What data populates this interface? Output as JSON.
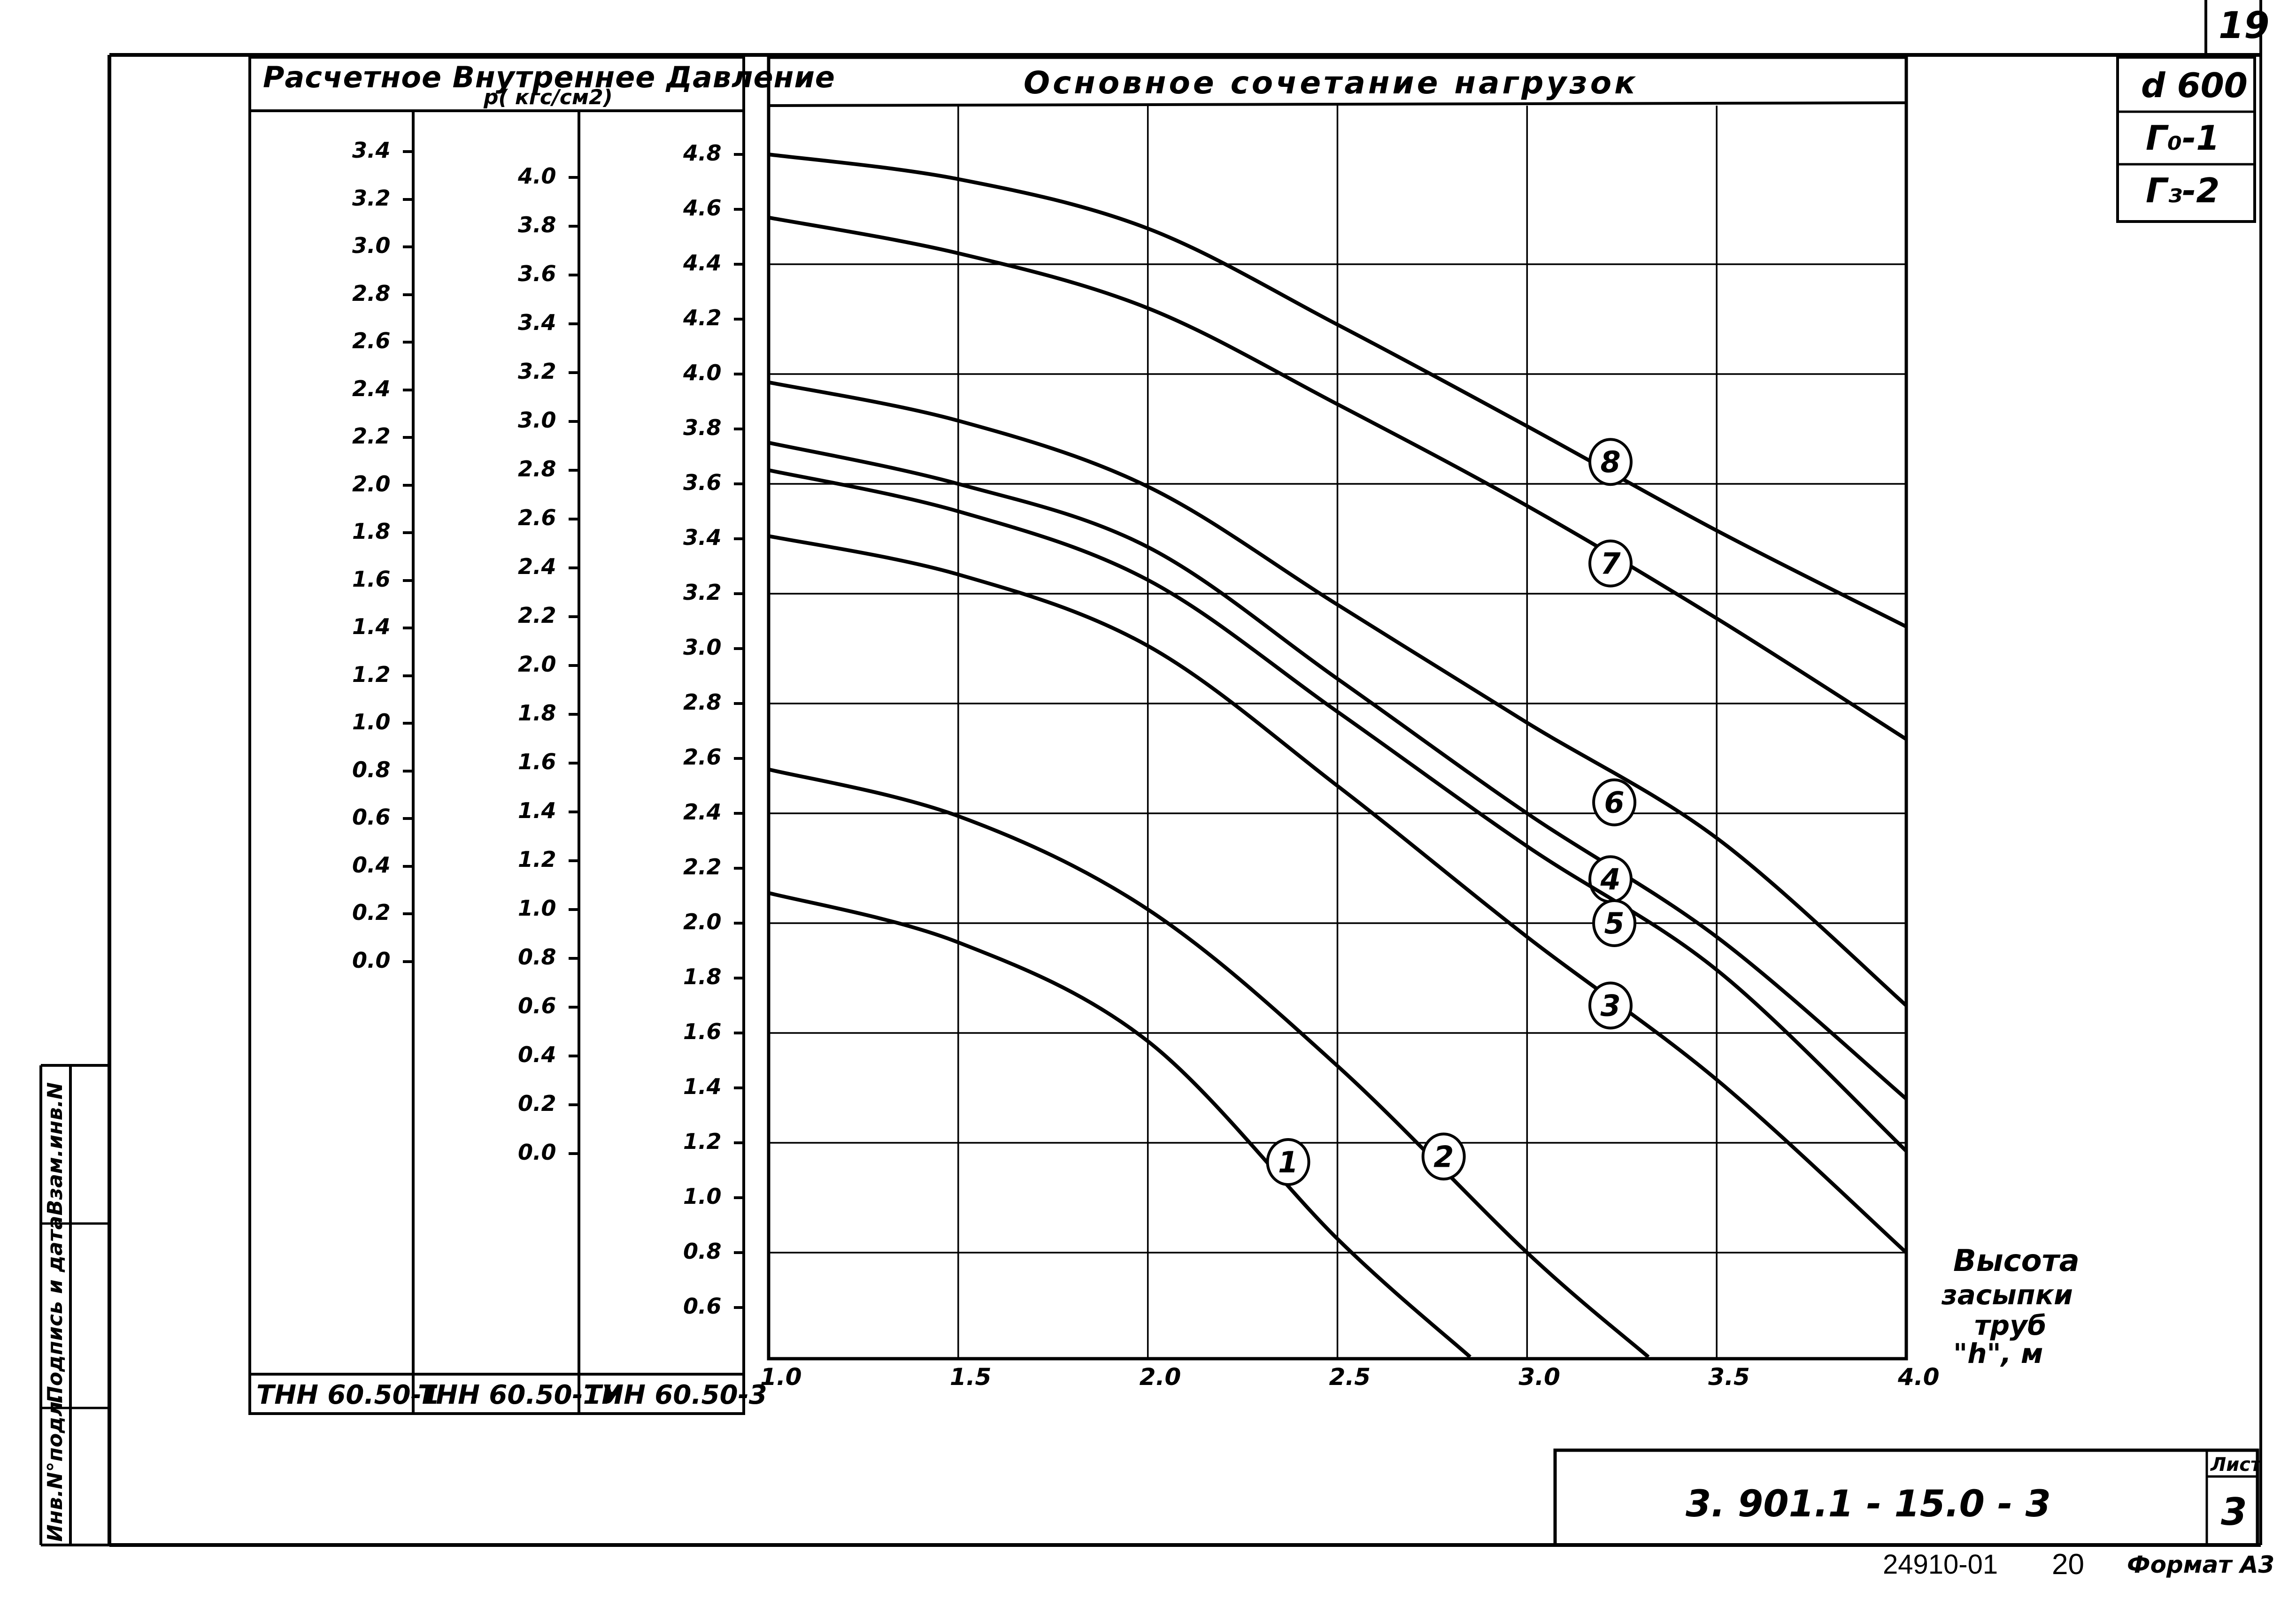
{
  "sheet": {
    "page_number_top": "19",
    "title_block": {
      "designation": "3. 901.1 - 15.0 - 3",
      "sheet_label": "Лист",
      "sheet_number": "3"
    },
    "footer": {
      "inventory": "24910-01",
      "copy_no": "20",
      "format": "Формат А3"
    },
    "side_stamp": [
      {
        "label": "Взам.инв.N"
      },
      {
        "label": "Подпись и дата"
      },
      {
        "label": "Инв.N°подл."
      }
    ],
    "spec_box": [
      {
        "label": "d 600"
      },
      {
        "label": "Г₀-1"
      },
      {
        "label": "Г₃-2"
      }
    ]
  },
  "pressure_scales": {
    "header_line1": "Расчетное Внутреннее Давление",
    "header_line2": "p( кгс/см2)",
    "columns": [
      {
        "pipe": "ТНН 60.50-1",
        "ticks": [
          "3.4",
          "3.2",
          "3.0",
          "2.8",
          "2.6",
          "2.4",
          "2.2",
          "2.0",
          "1.8",
          "1.6",
          "1.4",
          "1.2",
          "1.0",
          "0.8",
          "0.6",
          "0.4",
          "0.2",
          "0.0"
        ]
      },
      {
        "pipe": "ТНН 60.50-1У",
        "ticks": [
          "4.0",
          "3.8",
          "3.6",
          "3.4",
          "3.2",
          "3.0",
          "2.8",
          "2.6",
          "2.4",
          "2.2",
          "2.0",
          "1.8",
          "1.6",
          "1.4",
          "1.2",
          "1.0",
          "0.8",
          "0.6",
          "0.4",
          "0.2",
          "0.0"
        ]
      },
      {
        "pipe": "ТНН 60.50-3",
        "ticks": [
          "4.8",
          "4.6",
          "4.4",
          "4.2",
          "4.0",
          "3.8",
          "3.6",
          "3.4",
          "3.2",
          "3.0",
          "2.8",
          "2.6",
          "2.4",
          "2.2",
          "2.0",
          "1.8",
          "1.6",
          "1.4",
          "1.2",
          "1.0",
          "0.8",
          "0.6"
        ]
      }
    ]
  },
  "chart_data": {
    "type": "line",
    "title": "Основное сочетание нагрузок",
    "xlabel": "Высота засыпки труб \"h\", м",
    "ylabel": "Расчетное внутреннее давление p (кгс/см2) — по шкале ТНН 60.50-3",
    "x_ticks": [
      "1.0",
      "1.5",
      "2.0",
      "2.5",
      "3.0",
      "3.5",
      "4.0"
    ],
    "xlim": [
      1.0,
      4.0
    ],
    "ylim": [
      0.6,
      4.8
    ],
    "grid": true,
    "y_grid_step": 0.4,
    "x": [
      1.0,
      1.5,
      2.0,
      2.5,
      3.0,
      3.5,
      4.0
    ],
    "series": [
      {
        "name": "1",
        "values": [
          2.11,
          1.93,
          1.57,
          0.85,
          null,
          null,
          null
        ],
        "end": [
          2.85,
          0.42
        ],
        "label_pos": [
          2.37,
          1.13
        ]
      },
      {
        "name": "2",
        "values": [
          2.56,
          2.39,
          2.05,
          1.48,
          0.8,
          null,
          null
        ],
        "end": [
          3.32,
          0.42
        ],
        "label_pos": [
          2.78,
          1.15
        ]
      },
      {
        "name": "3",
        "values": [
          3.41,
          3.27,
          3.01,
          2.5,
          1.95,
          1.43,
          0.8
        ],
        "label_pos": [
          3.22,
          1.7
        ]
      },
      {
        "name": "4",
        "values": [
          3.75,
          3.6,
          3.37,
          2.89,
          2.4,
          1.95,
          1.36
        ],
        "label_pos": [
          3.22,
          2.16
        ]
      },
      {
        "name": "5",
        "values": [
          3.65,
          3.5,
          3.25,
          2.77,
          2.28,
          1.83,
          1.17
        ],
        "label_pos": [
          3.23,
          2.0
        ]
      },
      {
        "name": "6",
        "values": [
          3.97,
          3.83,
          3.59,
          3.16,
          2.73,
          2.31,
          1.7
        ],
        "label_pos": [
          3.23,
          2.44
        ]
      },
      {
        "name": "7",
        "values": [
          4.57,
          4.44,
          4.24,
          3.89,
          3.52,
          3.11,
          2.67
        ],
        "label_pos": [
          3.22,
          3.31
        ]
      },
      {
        "name": "8",
        "values": [
          4.8,
          4.71,
          4.53,
          4.18,
          3.81,
          3.43,
          3.08
        ],
        "label_pos": [
          3.22,
          3.68
        ]
      }
    ]
  },
  "axis_caption": {
    "line1": "Высота",
    "line2": "засыпки",
    "line3": "труб",
    "line4": "\"h\", м"
  }
}
